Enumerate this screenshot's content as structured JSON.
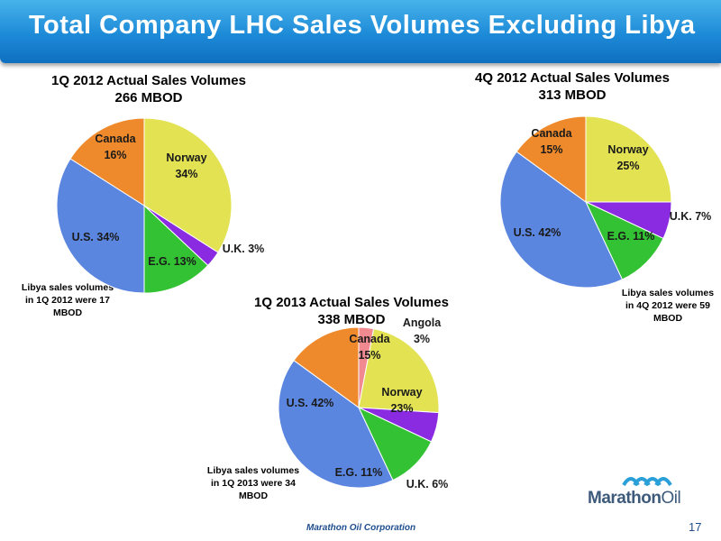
{
  "header": {
    "title": "Total Company LHC Sales Volumes Excluding Libya"
  },
  "chart_data": [
    {
      "type": "pie",
      "title": "1Q 2012 Actual Sales Volumes",
      "subtitle": "266 MBOD",
      "slices": [
        {
          "name": "Norway",
          "value": 34,
          "label": "34%",
          "color": "#e2e253"
        },
        {
          "name": "U.K.",
          "value": 3,
          "label": "U.K. 3%",
          "color": "#8a2be2"
        },
        {
          "name": "E.G.",
          "value": 13,
          "label": "E.G. 13%",
          "color": "#33c233"
        },
        {
          "name": "U.S.",
          "value": 34,
          "label": "U.S. 34%",
          "color": "#5b86e0"
        },
        {
          "name": "Canada",
          "value": 16,
          "label": "16%",
          "color": "#ee8a2c"
        }
      ],
      "note": "Libya sales volumes in 1Q 2012 were 17 MBOD"
    },
    {
      "type": "pie",
      "title": "4Q 2012 Actual Sales Volumes",
      "subtitle": "313 MBOD",
      "slices": [
        {
          "name": "Norway",
          "value": 25,
          "label": "25%",
          "color": "#e2e253"
        },
        {
          "name": "U.K.",
          "value": 7,
          "label": "U.K. 7%",
          "color": "#8a2be2"
        },
        {
          "name": "E.G.",
          "value": 11,
          "label": "E.G. 11%",
          "color": "#33c233"
        },
        {
          "name": "U.S.",
          "value": 42,
          "label": "U.S. 42%",
          "color": "#5b86e0"
        },
        {
          "name": "Canada",
          "value": 15,
          "label": "15%",
          "color": "#ee8a2c"
        }
      ],
      "note": "Libya sales volumes in 4Q 2012 were 59 MBOD"
    },
    {
      "type": "pie",
      "title": "1Q 2013 Actual Sales Volumes",
      "subtitle": "338 MBOD",
      "slices": [
        {
          "name": "Angola",
          "value": 3,
          "label": "3%",
          "color": "#f08a90"
        },
        {
          "name": "Norway",
          "value": 23,
          "label": "23%",
          "color": "#e2e253"
        },
        {
          "name": "U.K.",
          "value": 6,
          "label": "U.K. 6%",
          "color": "#8a2be2"
        },
        {
          "name": "E.G.",
          "value": 11,
          "label": "E.G. 11%",
          "color": "#33c233"
        },
        {
          "name": "U.S.",
          "value": 42,
          "label": "U.S. 42%",
          "color": "#5b86e0"
        },
        {
          "name": "Canada",
          "value": 15,
          "label": "15%",
          "color": "#ee8a2c"
        }
      ],
      "note": "Libya sales volumes in 1Q 2013 were 34 MBOD"
    }
  ],
  "footer": {
    "company": "Marathon Oil Corporation",
    "page_number": "17"
  },
  "logo": {
    "word1": "Marathon",
    "word2": "Oil"
  }
}
